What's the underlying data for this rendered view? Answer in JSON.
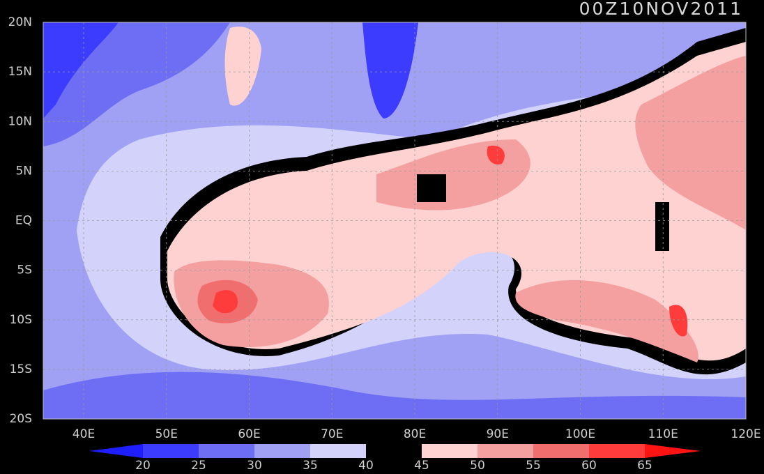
{
  "title": "00Z10NOV2011",
  "map": {
    "lon_ticks": [
      "40E",
      "50E",
      "60E",
      "70E",
      "80E",
      "90E",
      "100E",
      "110E",
      "120E"
    ],
    "lat_ticks": [
      "20N",
      "15N",
      "10N",
      "5N",
      "EQ",
      "5S",
      "10S",
      "15S",
      "20S"
    ],
    "colorbar": {
      "labels": [
        "20",
        "25",
        "30",
        "35",
        "40",
        "45",
        "50",
        "55",
        "60",
        "65"
      ],
      "colors": [
        "#1e1eff",
        "#3c3cff",
        "#6e6ef5",
        "#a0a0f5",
        "#d2d2fa",
        "#000000",
        "#ffd2d2",
        "#f5a0a0",
        "#f06e6e",
        "#ff3c3c",
        "#ff1414"
      ]
    }
  }
}
